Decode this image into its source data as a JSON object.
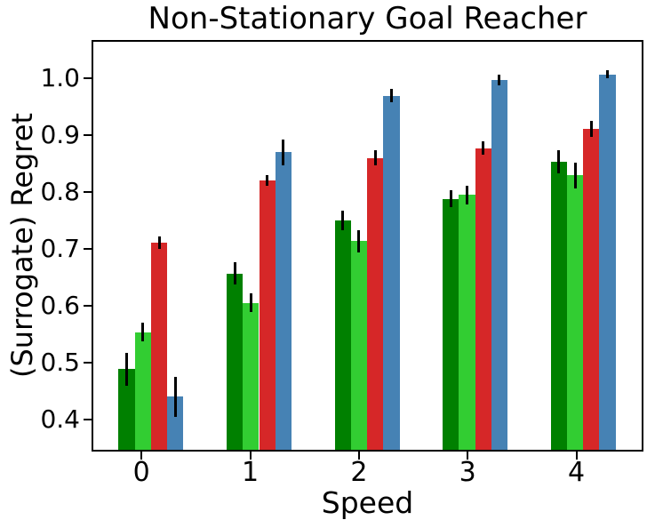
{
  "title": "Non-Stationary Goal Reacher",
  "chart_data": {
    "type": "bar",
    "title": "Non-Stationary Goal Reacher",
    "xlabel": "Speed",
    "ylabel": "(Surrogate) Regret",
    "categories": [
      "0",
      "1",
      "2",
      "3",
      "4"
    ],
    "yticks": [
      "0.4",
      "0.5",
      "0.6",
      "0.7",
      "0.8",
      "0.9",
      "1.0"
    ],
    "ytick_values": [
      0.4,
      0.5,
      0.6,
      0.7,
      0.8,
      0.9,
      1.0
    ],
    "ylim": [
      0.344,
      1.068
    ],
    "grid": false,
    "legend_position": "none",
    "bar_width_units": 0.15,
    "bar_offsets_units": [
      -0.15,
      0.0,
      0.15,
      0.3
    ],
    "series": [
      {
        "name": "dark-green",
        "color": "#008000",
        "values": [
          0.487,
          0.657,
          0.751,
          0.789,
          0.855
        ],
        "errors": [
          0.029,
          0.02,
          0.017,
          0.015,
          0.02
        ]
      },
      {
        "name": "light-green",
        "color": "#32CD32",
        "values": [
          0.553,
          0.605,
          0.714,
          0.796,
          0.831
        ],
        "errors": [
          0.017,
          0.016,
          0.02,
          0.017,
          0.023
        ]
      },
      {
        "name": "red",
        "color": "#d62728",
        "values": [
          0.712,
          0.822,
          0.862,
          0.879,
          0.913
        ],
        "errors": [
          0.011,
          0.01,
          0.014,
          0.012,
          0.014
        ]
      },
      {
        "name": "steel-blue",
        "color": "#4682b4",
        "values": [
          0.438,
          0.872,
          0.972,
          1.0,
          1.01
        ],
        "errors": [
          0.036,
          0.023,
          0.012,
          0.01,
          0.007
        ]
      }
    ]
  }
}
